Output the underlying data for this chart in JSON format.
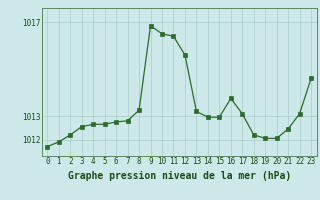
{
  "x": [
    0,
    1,
    2,
    3,
    4,
    5,
    6,
    7,
    8,
    9,
    10,
    11,
    12,
    13,
    14,
    15,
    16,
    17,
    18,
    19,
    20,
    21,
    22,
    23
  ],
  "y": [
    1011.7,
    1011.9,
    1012.2,
    1012.55,
    1012.65,
    1012.65,
    1012.75,
    1012.8,
    1013.25,
    1016.85,
    1016.5,
    1016.4,
    1015.6,
    1013.2,
    1012.95,
    1012.95,
    1013.75,
    1013.1,
    1012.2,
    1012.05,
    1012.05,
    1012.45,
    1013.1,
    1014.6
  ],
  "line_color": "#2d6a2d",
  "marker_color": "#2d6a2d",
  "bg_color": "#cce8e8",
  "plot_bg_color": "#cce8e8",
  "grid_color": "#aacccc",
  "bottom_bar_color": "#4a7c4a",
  "xlabel": "Graphe pression niveau de la mer (hPa)",
  "xlabel_fontsize": 7,
  "ytick_labels": [
    "1012",
    "1013",
    "1017"
  ],
  "ytick_values": [
    1012,
    1013,
    1017
  ],
  "xlim": [
    -0.5,
    23.5
  ],
  "ylim": [
    1011.3,
    1017.6
  ],
  "tick_fontsize": 5.5
}
